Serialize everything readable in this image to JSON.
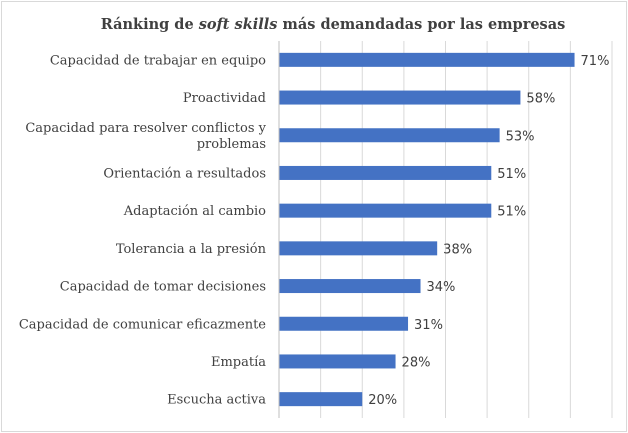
{
  "chart_data": {
    "type": "bar",
    "orientation": "horizontal",
    "title_parts": [
      {
        "text": "Ránking de ",
        "italic": false
      },
      {
        "text": "soft skills",
        "italic": true
      },
      {
        "text": " más demandadas por las empresas",
        "italic": false
      }
    ],
    "categories": [
      [
        "Capacidad de trabajar en equipo"
      ],
      [
        "Proactividad"
      ],
      [
        "Capacidad para resolver conflictos y",
        "problemas"
      ],
      [
        "Orientación a resultados"
      ],
      [
        "Adaptación al cambio"
      ],
      [
        "Tolerancia a la presión"
      ],
      [
        "Capacidad de tomar decisiones"
      ],
      [
        "Capacidad de comunicar eficazmente"
      ],
      [
        "Empatía"
      ],
      [
        "Escucha activa"
      ]
    ],
    "values": [
      71,
      58,
      53,
      51,
      51,
      38,
      34,
      31,
      28,
      20
    ],
    "value_suffix": "%",
    "xlim": [
      0,
      80
    ],
    "grid": "vertical",
    "legend": "none",
    "bar_color": "#4472c4",
    "grid_color": "#d9d9d9"
  }
}
